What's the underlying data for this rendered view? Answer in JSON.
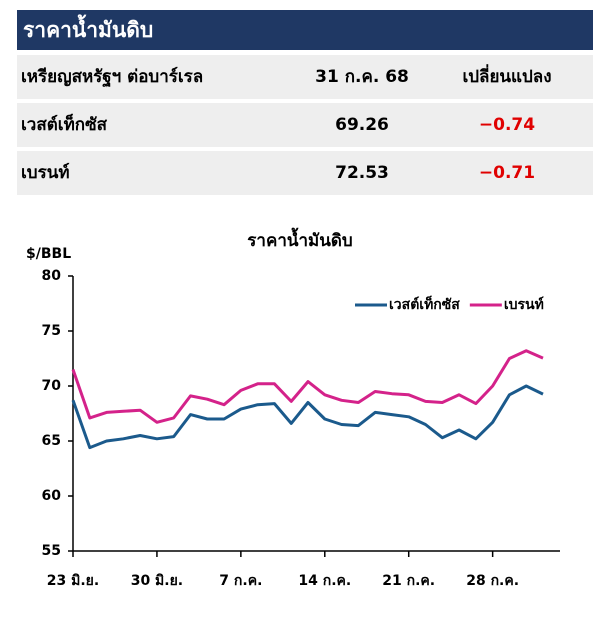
{
  "header": {
    "title": "ราคาน้ำมันดิบ"
  },
  "table": {
    "columns": [
      "เหรียญสหรัฐฯ ต่อบาร์เรล",
      "31 ก.ค. 68",
      "เปลี่ยนแปลง"
    ],
    "rows": [
      [
        "เวสต์เท็กซัส",
        "69.26",
        "−0.74"
      ],
      [
        "เบรนท์",
        "72.53",
        "−0.71"
      ]
    ]
  },
  "chart_data": {
    "type": "line",
    "title": "ราคาน้ำมันดิบ",
    "y_label": "$/BBL",
    "categories": [
      "23 มิ.ย.",
      null,
      null,
      null,
      null,
      "30 มิ.ย.",
      null,
      null,
      null,
      null,
      "7 ก.ค.",
      null,
      null,
      null,
      null,
      "14 ก.ค.",
      null,
      null,
      null,
      null,
      "21 ก.ค.",
      null,
      null,
      null,
      null,
      "28 ก.ค.",
      null,
      null,
      null
    ],
    "series": [
      {
        "name": "เวสต์เท็กซัส",
        "color": "#1b5a8c",
        "values": [
          68.7,
          64.4,
          65.0,
          65.2,
          65.5,
          65.2,
          65.4,
          67.4,
          67.0,
          67.0,
          67.9,
          68.3,
          68.4,
          66.6,
          68.5,
          67.0,
          66.5,
          66.4,
          67.6,
          67.4,
          67.2,
          66.5,
          65.3,
          66.0,
          65.2,
          66.7,
          69.2,
          70.0,
          69.26
        ]
      },
      {
        "name": "เบรนท์",
        "color": "#d4228a",
        "values": [
          71.5,
          67.1,
          67.6,
          67.7,
          67.8,
          66.7,
          67.1,
          69.1,
          68.8,
          68.3,
          69.6,
          70.2,
          70.2,
          68.6,
          70.4,
          69.2,
          68.7,
          68.5,
          69.5,
          69.3,
          69.2,
          68.6,
          68.5,
          69.2,
          68.4,
          70.0,
          72.5,
          73.2,
          72.53
        ]
      }
    ],
    "ylim": [
      55,
      80
    ],
    "yticks": [
      55,
      60,
      65,
      70,
      75,
      80
    ],
    "grid": false,
    "legend": "top-right"
  }
}
